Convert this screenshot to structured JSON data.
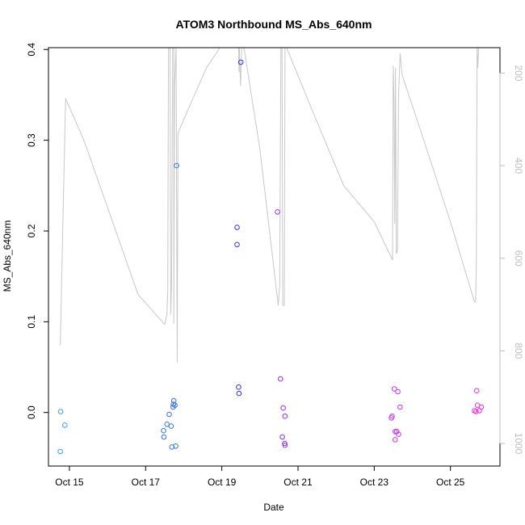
{
  "chart_data": {
    "type": "scatter",
    "title": "ATOM3 Northbound MS_Abs_640nm",
    "xlabel": "Date",
    "ylabel": "MS_Abs_640nm",
    "x_ticks": [
      {
        "day": 15,
        "label": "Oct 15"
      },
      {
        "day": 17,
        "label": "Oct 17"
      },
      {
        "day": 19,
        "label": "Oct 19"
      },
      {
        "day": 21,
        "label": "Oct 21"
      },
      {
        "day": 23,
        "label": "Oct 23"
      },
      {
        "day": 25,
        "label": "Oct 25"
      }
    ],
    "xlim": [
      14.45,
      26.3
    ],
    "ylim": [
      -0.059,
      0.402
    ],
    "y_ticks": [
      {
        "value": 0.0,
        "label": "0.0"
      },
      {
        "value": 0.1,
        "label": "0.1"
      },
      {
        "value": 0.2,
        "label": "0.2"
      },
      {
        "value": 0.3,
        "label": "0.3"
      },
      {
        "value": 0.4,
        "label": "0.4"
      }
    ],
    "y2_reversed": true,
    "y2_ticks": [
      {
        "value": 200,
        "label": "200"
      },
      {
        "value": 400,
        "label": "400"
      },
      {
        "value": 600,
        "label": "600"
      },
      {
        "value": 800,
        "label": "800"
      },
      {
        "value": 1000,
        "label": "1000"
      }
    ],
    "y2_color": "#bfbfbf",
    "grid": false,
    "points": [
      {
        "x": 14.77,
        "y": 0.001,
        "color": "#33a0f0"
      },
      {
        "x": 14.88,
        "y": -0.014,
        "color": "#33a0f0"
      },
      {
        "x": 14.76,
        "y": -0.043,
        "color": "#33a0f0"
      },
      {
        "x": 17.47,
        "y": -0.02,
        "color": "#3a72f2"
      },
      {
        "x": 17.48,
        "y": -0.027,
        "color": "#3a72f2"
      },
      {
        "x": 17.56,
        "y": -0.013,
        "color": "#3a72f2"
      },
      {
        "x": 17.62,
        "y": -0.002,
        "color": "#3a72f2"
      },
      {
        "x": 17.67,
        "y": -0.015,
        "color": "#3a72f2"
      },
      {
        "x": 17.69,
        "y": -0.038,
        "color": "#3a72f2"
      },
      {
        "x": 17.72,
        "y": 0.006,
        "color": "#3a72f2"
      },
      {
        "x": 17.73,
        "y": 0.009,
        "color": "#3a72f2"
      },
      {
        "x": 17.74,
        "y": 0.013,
        "color": "#3a72f2"
      },
      {
        "x": 17.77,
        "y": 0.008,
        "color": "#3a72f2"
      },
      {
        "x": 17.79,
        "y": -0.037,
        "color": "#3a72f2"
      },
      {
        "x": 17.81,
        "y": 0.272,
        "color": "#3a72f2"
      },
      {
        "x": 19.4,
        "y": 0.204,
        "color": "#3030f0"
      },
      {
        "x": 19.4,
        "y": 0.185,
        "color": "#3030f0"
      },
      {
        "x": 19.44,
        "y": 0.028,
        "color": "#3030f0"
      },
      {
        "x": 19.45,
        "y": 0.021,
        "color": "#3030f0"
      },
      {
        "x": 19.5,
        "y": 0.386,
        "color": "#3030f0"
      },
      {
        "x": 20.46,
        "y": 0.221,
        "color": "#8f30f0"
      },
      {
        "x": 20.54,
        "y": 0.037,
        "color": "#8f30f0"
      },
      {
        "x": 20.61,
        "y": 0.005,
        "color": "#8f30f0"
      },
      {
        "x": 20.66,
        "y": -0.004,
        "color": "#8f30f0"
      },
      {
        "x": 20.59,
        "y": -0.027,
        "color": "#8f30f0"
      },
      {
        "x": 20.65,
        "y": -0.034,
        "color": "#8f30f0"
      },
      {
        "x": 20.66,
        "y": -0.036,
        "color": "#8f30f0"
      },
      {
        "x": 23.45,
        "y": -0.006,
        "color": "#cc30f0"
      },
      {
        "x": 23.47,
        "y": -0.004,
        "color": "#cc30f0"
      },
      {
        "x": 23.53,
        "y": 0.026,
        "color": "#cc30f0"
      },
      {
        "x": 23.62,
        "y": 0.023,
        "color": "#cc30f0"
      },
      {
        "x": 23.68,
        "y": 0.006,
        "color": "#cc30f0"
      },
      {
        "x": 23.55,
        "y": -0.021,
        "color": "#cc30f0"
      },
      {
        "x": 23.59,
        "y": -0.021,
        "color": "#cc30f0"
      },
      {
        "x": 23.64,
        "y": -0.024,
        "color": "#cc30f0"
      },
      {
        "x": 23.55,
        "y": -0.03,
        "color": "#cc30f0"
      },
      {
        "x": 25.63,
        "y": 0.002,
        "color": "#f030e0"
      },
      {
        "x": 25.67,
        "y": 0.001,
        "color": "#f030e0"
      },
      {
        "x": 25.69,
        "y": 0.024,
        "color": "#f030e0"
      },
      {
        "x": 25.71,
        "y": 0.008,
        "color": "#f030e0"
      },
      {
        "x": 25.76,
        "y": 0.002,
        "color": "#f030e0"
      },
      {
        "x": 25.81,
        "y": 0.006,
        "color": "#f030e0"
      }
    ],
    "altitude_series": {
      "color": "#c8c8c8",
      "points": [
        [
          14.76,
          0.074
        ],
        [
          14.9,
          0.346
        ],
        [
          15.38,
          0.3
        ],
        [
          16.1,
          0.214
        ],
        [
          16.8,
          0.13
        ],
        [
          17.5,
          0.097
        ],
        [
          17.56,
          0.108
        ],
        [
          17.58,
          0.135
        ],
        [
          17.6,
          0.402
        ],
        [
          17.64,
          0.402
        ],
        [
          17.66,
          0.108
        ],
        [
          17.68,
          0.14
        ],
        [
          17.71,
          0.402
        ],
        [
          17.74,
          0.402
        ],
        [
          17.74,
          0.098
        ],
        [
          17.76,
          0.36
        ],
        [
          17.8,
          0.402
        ],
        [
          17.83,
          0.055
        ],
        [
          17.85,
          0.308
        ],
        [
          18.2,
          0.342
        ],
        [
          18.6,
          0.38
        ],
        [
          18.95,
          0.402
        ],
        [
          19.1,
          0.402
        ],
        [
          19.44,
          0.402
        ],
        [
          19.45,
          0.375
        ],
        [
          19.46,
          0.402
        ],
        [
          19.49,
          0.36
        ],
        [
          19.52,
          0.402
        ],
        [
          19.58,
          0.402
        ],
        [
          20.0,
          0.29
        ],
        [
          20.48,
          0.118
        ],
        [
          20.52,
          0.14
        ],
        [
          20.55,
          0.402
        ],
        [
          20.58,
          0.402
        ],
        [
          20.6,
          0.118
        ],
        [
          20.64,
          0.118
        ],
        [
          20.66,
          0.402
        ],
        [
          20.7,
          0.402
        ],
        [
          21.4,
          0.33
        ],
        [
          22.2,
          0.25
        ],
        [
          23.0,
          0.21
        ],
        [
          23.48,
          0.168
        ],
        [
          23.5,
          0.382
        ],
        [
          23.52,
          0.34
        ],
        [
          23.54,
          0.208
        ],
        [
          23.56,
          0.38
        ],
        [
          23.58,
          0.175
        ],
        [
          23.61,
          0.178
        ],
        [
          23.64,
          0.35
        ],
        [
          23.68,
          0.396
        ],
        [
          23.73,
          0.372
        ],
        [
          24.3,
          0.3
        ],
        [
          25.0,
          0.21
        ],
        [
          25.63,
          0.122
        ],
        [
          25.66,
          0.122
        ],
        [
          25.68,
          0.168
        ],
        [
          25.7,
          0.402
        ],
        [
          25.72,
          0.38
        ],
        [
          25.74,
          0.402
        ],
        [
          25.8,
          0.402
        ]
      ]
    }
  }
}
